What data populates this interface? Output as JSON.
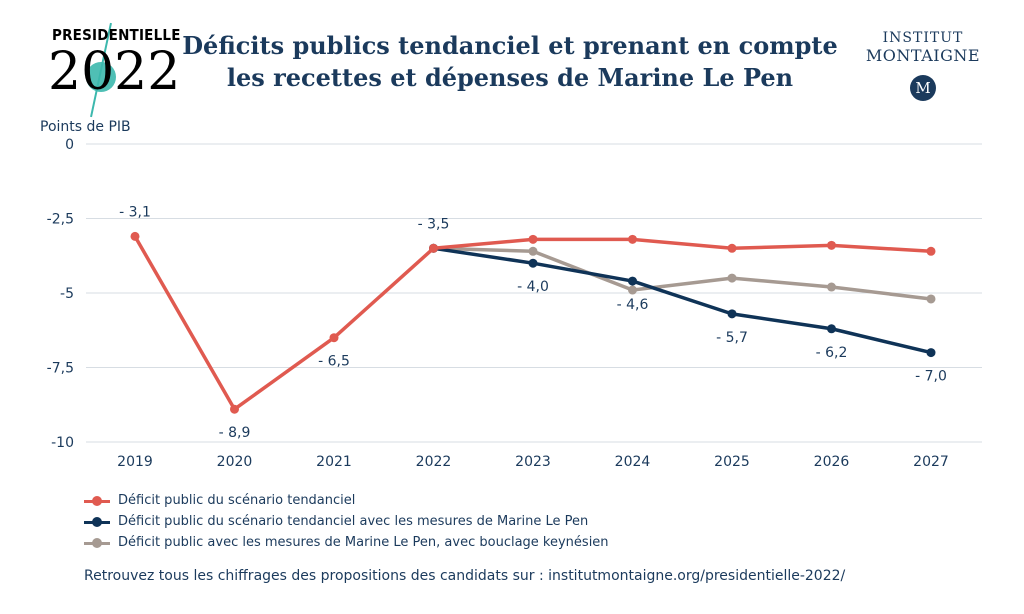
{
  "logo": {
    "small": "PRESIDENTIELLE",
    "big": "2022"
  },
  "header": {
    "title_line1": "Déficits publics tendanciel et prenant en compte",
    "title_line2": "les recettes et dépenses de Marine Le Pen"
  },
  "institute": {
    "line1": "INSTITUT",
    "line2": "MONTAIGNE",
    "badge": "M"
  },
  "colors": {
    "red": "#e05a50",
    "navy": "#0f3357",
    "gray": "#a69a92",
    "grid": "#d7dde3",
    "text": "#1b3a5c"
  },
  "chart_data": {
    "type": "line",
    "ylabel": "Points de PIB",
    "ylim": [
      -10,
      0
    ],
    "yticks": [
      {
        "value": 0,
        "label": "0"
      },
      {
        "value": -2.5,
        "label": "-2,5"
      },
      {
        "value": -5,
        "label": "-5"
      },
      {
        "value": -7.5,
        "label": "-7,5"
      },
      {
        "value": -10,
        "label": "-10"
      }
    ],
    "categories": [
      "2019",
      "2020",
      "2021",
      "2022",
      "2023",
      "2024",
      "2025",
      "2026",
      "2027"
    ],
    "series": [
      {
        "name": "Déficit public du scénario tendanciel",
        "color": "#e05a50",
        "values": [
          -3.1,
          -8.9,
          -6.5,
          -3.5,
          -3.2,
          -3.2,
          -3.5,
          -3.4,
          -3.6
        ]
      },
      {
        "name": "Déficit public du scénario tendanciel avec les mesures de Marine Le Pen",
        "color": "#0f3357",
        "values": [
          null,
          null,
          null,
          -3.5,
          -4.0,
          -4.6,
          -5.7,
          -6.2,
          -7.0
        ]
      },
      {
        "name": "Déficit public avec les mesures de Marine Le Pen, avec bouclage keynésien",
        "color": "#a69a92",
        "values": [
          null,
          null,
          null,
          -3.5,
          -3.6,
          -4.9,
          -4.5,
          -4.8,
          -5.2
        ]
      }
    ],
    "data_labels": [
      {
        "category": "2019",
        "value": -3.1,
        "text": "- 3,1",
        "pos": "above"
      },
      {
        "category": "2020",
        "value": -8.9,
        "text": "- 8,9",
        "pos": "below"
      },
      {
        "category": "2021",
        "value": -6.5,
        "text": "- 6,5",
        "pos": "below"
      },
      {
        "category": "2022",
        "value": -3.5,
        "text": "- 3,5",
        "pos": "above"
      },
      {
        "category": "2023",
        "value": -4.0,
        "text": "- 4,0",
        "pos": "below"
      },
      {
        "category": "2024",
        "value": -4.6,
        "text": "- 4,6",
        "pos": "below"
      },
      {
        "category": "2025",
        "value": -5.7,
        "text": "- 5,7",
        "pos": "below"
      },
      {
        "category": "2026",
        "value": -6.2,
        "text": "- 6,2",
        "pos": "below"
      },
      {
        "category": "2027",
        "value": -7.0,
        "text": "- 7,0",
        "pos": "below"
      }
    ],
    "grid": true,
    "legend_position": "bottom-left"
  },
  "footer": "Retrouvez tous les chiffrages des propositions des candidats sur : institutmontaigne.org/presidentielle-2022/"
}
